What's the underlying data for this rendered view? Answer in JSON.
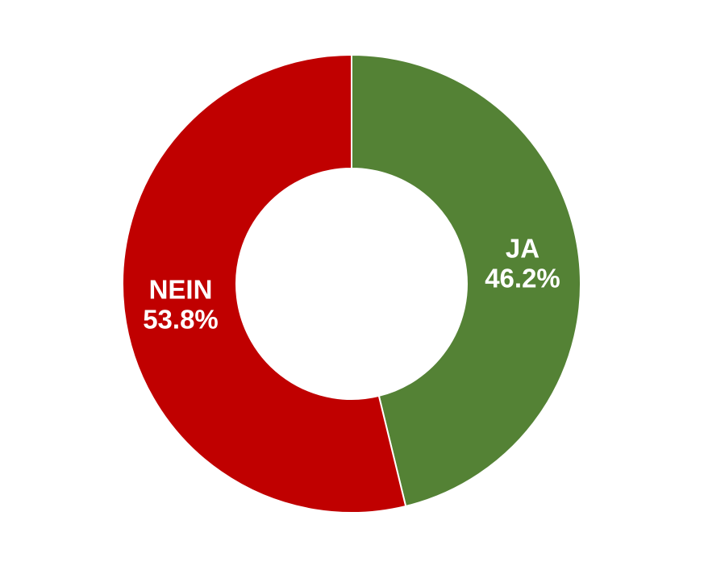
{
  "chart_data": {
    "type": "pie",
    "donut": true,
    "title": "",
    "slices": [
      {
        "label": "JA",
        "value": 46.2,
        "display": "46.2%",
        "color": "#548235"
      },
      {
        "label": "NEIN",
        "value": 53.8,
        "display": "53.8%",
        "color": "#c00000"
      }
    ],
    "start_angle": "12 o'clock",
    "direction": "clockwise",
    "slice_border_color": "#ffffff",
    "label_color": "#ffffff",
    "legend": "none"
  }
}
